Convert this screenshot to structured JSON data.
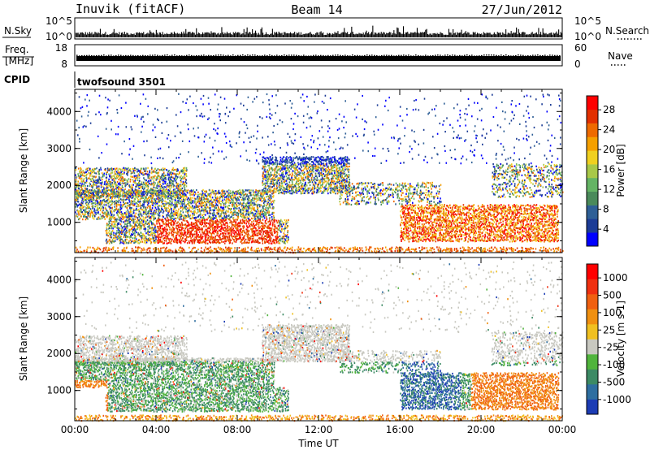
{
  "header": {
    "station": "Inuvik (fitACF)",
    "beam": "Beam 14",
    "date": "27/Jun/2012"
  },
  "side_labels": {
    "nsky": "N.Sky",
    "nsearch": "N.Search",
    "freq_line1": "Freq.",
    "freq_line2": "[MHz]",
    "cpid": "CPID",
    "nave": "Nave"
  },
  "cpid_text": "twofsound 3501",
  "chart_data": [
    {
      "type": "line",
      "panel": "noise",
      "left_ticks": [
        "10^5",
        "10^0"
      ],
      "right_ticks": [
        "10^5",
        "10^0"
      ],
      "series": [
        {
          "name": "N.Sky"
        },
        {
          "name": "N.Search"
        }
      ]
    },
    {
      "type": "line",
      "panel": "frequency",
      "left_ticks": [
        "18",
        "8"
      ],
      "right_ticks": [
        "60",
        "0"
      ],
      "series": [
        {
          "name": "Freq."
        },
        {
          "name": "Nave"
        }
      ]
    },
    {
      "type": "heatmap",
      "panel": "power",
      "ylabel": "Slant Range [km]",
      "ylim": [
        180,
        4600
      ],
      "y_ticks": [
        1000,
        2000,
        3000,
        4000
      ],
      "colorbar": {
        "label": "Power [dB]",
        "ticks": [
          "28",
          "24",
          "20",
          "16",
          "12",
          "8",
          "4"
        ],
        "colors": [
          "#0000ff",
          "#1c3c96",
          "#2e5f96",
          "#4a8a5a",
          "#64b464",
          "#a8c848",
          "#f0d020",
          "#f5a000",
          "#ee6a00",
          "#e23000",
          "#ff0000"
        ]
      }
    },
    {
      "type": "heatmap",
      "panel": "velocity",
      "ylabel": "Slant Range [km]",
      "ylim": [
        180,
        4600
      ],
      "y_ticks": [
        1000,
        2000,
        3000,
        4000
      ],
      "xlabel": "Time UT",
      "x_ticks": [
        "00:00",
        "04:00",
        "08:00",
        "12:00",
        "16:00",
        "20:00",
        "00:00"
      ],
      "xlim_hours": [
        0,
        24
      ],
      "colorbar": {
        "label": "Velocity [m s-1]",
        "ticks": [
          "1000",
          "500",
          "100",
          "25",
          "-25",
          "-100",
          "-500",
          "-1000"
        ],
        "colors": [
          "#1c3cb4",
          "#2e6ea0",
          "#3c8a64",
          "#50b43c",
          "#c8c8c0",
          "#f0c020",
          "#f09010",
          "#f06010",
          "#f03010",
          "#ff0000"
        ]
      }
    }
  ]
}
